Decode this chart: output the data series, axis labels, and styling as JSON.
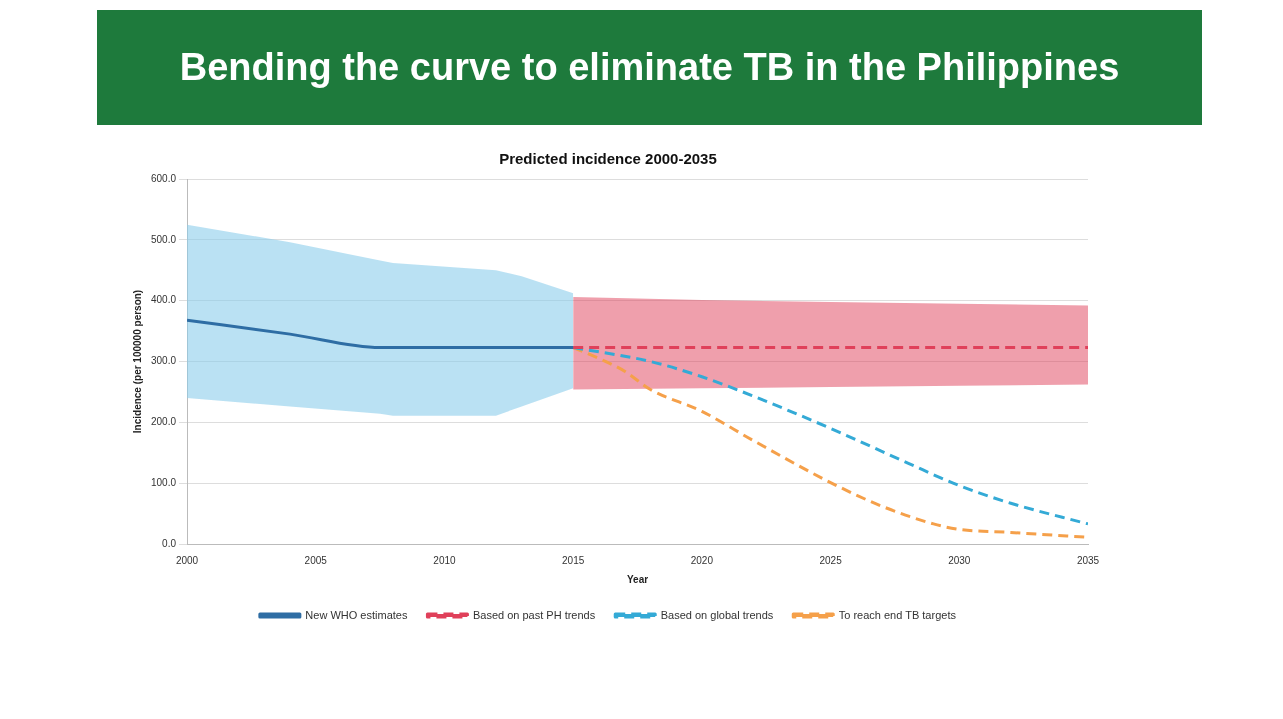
{
  "chart_data": {
    "type": "line",
    "title": "Bending the curve to eliminate TB in the Philippines",
    "subtitle": "Predicted incidence 2000-2035",
    "xlabel": "Year",
    "ylabel": "Incidence (per 100000 person)",
    "xlim": [
      2000,
      2035
    ],
    "xticks": [
      2000,
      2005,
      2010,
      2015,
      2020,
      2025,
      2030,
      2035
    ],
    "ylim": [
      0,
      600
    ],
    "yticks": [
      {
        "value": 0,
        "label": "0.0"
      },
      {
        "value": 100,
        "label": "100.0"
      },
      {
        "value": 200,
        "label": "200.0"
      },
      {
        "value": 300,
        "label": "300.0"
      },
      {
        "value": 400,
        "label": "400.0"
      },
      {
        "value": 500,
        "label": "500.0"
      },
      {
        "value": 600,
        "label": "600.0"
      }
    ],
    "grid": "y",
    "legend": "bottom",
    "series": [
      {
        "name": "New WHO estimates",
        "color": "#2e6da4",
        "line_style": "solid",
        "x": [
          2000,
          2004,
          2007.5,
          2008,
          2012,
          2013,
          2015
        ],
        "values": [
          368,
          345,
          323,
          323,
          323,
          323,
          323
        ],
        "lower": [
          240,
          226,
          214,
          211,
          211,
          226,
          256
        ],
        "upper": [
          525,
          496,
          466,
          462,
          450,
          440,
          412
        ]
      },
      {
        "name": "Based on past PH trends",
        "color": "#e0405a",
        "line_style": "dashed",
        "x": [
          2015,
          2020,
          2025,
          2030,
          2035
        ],
        "values": [
          323,
          323,
          323,
          323,
          323
        ],
        "lower": [
          254,
          256,
          258,
          260,
          262
        ],
        "upper": [
          406,
          401,
          398,
          395,
          392
        ]
      },
      {
        "name": "Based on global trends",
        "color": "#34aad6",
        "line_style": "dashed",
        "x": [
          2015,
          2018,
          2020,
          2022,
          2025,
          2028,
          2030,
          2032,
          2035
        ],
        "values": [
          323,
          300,
          275,
          243,
          190,
          133,
          96,
          67,
          33
        ]
      },
      {
        "name": "To reach end TB targets",
        "color": "#f5a04a",
        "line_style": "dashed",
        "x": [
          2015,
          2016,
          2017,
          2018,
          2020,
          2022,
          2025,
          2027,
          2029,
          2030,
          2032,
          2035
        ],
        "values": [
          323,
          305,
          284,
          254,
          218,
          170,
          101,
          62,
          33,
          24,
          19,
          11
        ]
      }
    ]
  }
}
